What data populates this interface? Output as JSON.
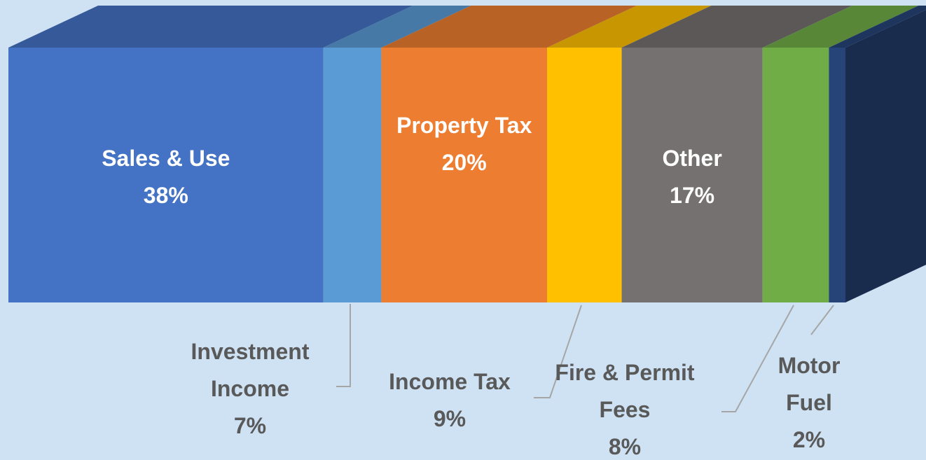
{
  "chart_data": {
    "type": "stacked-bar-3d",
    "categories": [
      "Sales & Use",
      "Investment Income",
      "Property Tax",
      "Income Tax",
      "Other",
      "Fire & Permit Fees",
      "Motor Fuel"
    ],
    "values": [
      38,
      7,
      20,
      9,
      17,
      8,
      2
    ],
    "value_labels": [
      "38%",
      "7%",
      "20%",
      "9%",
      "17%",
      "8%",
      "2%"
    ],
    "colors": [
      "#4472c4",
      "#5b9bd5",
      "#ed7d31",
      "#ffc000",
      "#767171",
      "#70ad47",
      "#264478"
    ]
  }
}
